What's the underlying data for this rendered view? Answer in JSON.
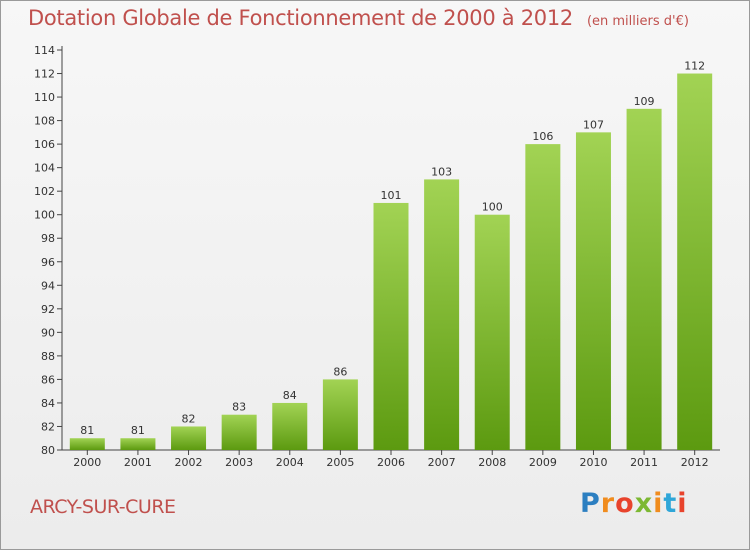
{
  "header": {
    "title": "Dotation Globale de Fonctionnement de 2000 à 2012",
    "unit": "(en milliers d'€)"
  },
  "footer": {
    "commune": "ARCY-SUR-CURE",
    "logo_text": "Proxiti"
  },
  "colors": {
    "bar_top": "#a2d354",
    "bar_bottom": "#5c9a10",
    "title": "#c0504d"
  },
  "chart_data": {
    "type": "bar",
    "categories": [
      "2000",
      "2001",
      "2002",
      "2003",
      "2004",
      "2005",
      "2006",
      "2007",
      "2008",
      "2009",
      "2010",
      "2011",
      "2012"
    ],
    "values": [
      81,
      81,
      82,
      83,
      84,
      86,
      101,
      103,
      100,
      106,
      107,
      109,
      112
    ],
    "data_labels": [
      "81",
      "81",
      "82",
      "83",
      "84",
      "86",
      "101",
      "103",
      "100",
      "106",
      "107",
      "109",
      "112"
    ],
    "title": "Dotation Globale de Fonctionnement de 2000 à 2012",
    "ylim": [
      80,
      114
    ],
    "yticks": [
      80,
      82,
      84,
      86,
      88,
      90,
      92,
      94,
      96,
      98,
      100,
      102,
      104,
      106,
      108,
      110,
      112,
      114
    ],
    "grid": false,
    "legend": "none"
  }
}
